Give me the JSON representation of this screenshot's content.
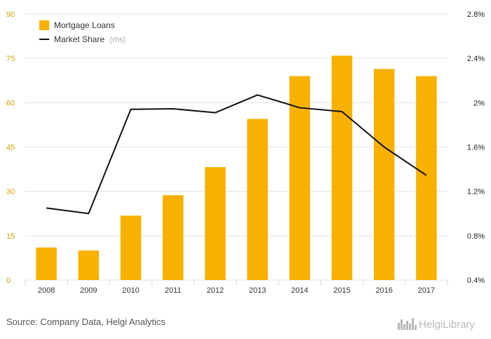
{
  "chart_data": {
    "type": "bar",
    "categories": [
      "2008",
      "2009",
      "2010",
      "2011",
      "2012",
      "2013",
      "2014",
      "2015",
      "2016",
      "2017"
    ],
    "series": [
      {
        "name": "Mortgage Loans",
        "type": "bar",
        "axis": "left",
        "values": [
          11.0,
          10.0,
          21.8,
          28.7,
          38.2,
          54.5,
          69.0,
          75.9,
          71.4,
          69.0
        ]
      },
      {
        "name": "Market Share",
        "name_suffix": "(rhs)",
        "type": "line",
        "axis": "right",
        "values": [
          1.05,
          1.0,
          1.94,
          1.945,
          1.91,
          2.07,
          1.955,
          1.92,
          1.6,
          1.345
        ]
      }
    ],
    "y_left": {
      "min": 0,
      "max": 90,
      "ticks": [
        0,
        15,
        30,
        45,
        60,
        75,
        90
      ],
      "tick_labels": [
        "0",
        "15",
        "30",
        "45",
        "60",
        "75",
        "90"
      ]
    },
    "y_right": {
      "min": 0.4,
      "max": 2.8,
      "ticks": [
        0.4,
        0.8,
        1.2,
        1.6,
        2.0,
        2.4,
        2.8
      ],
      "tick_labels": [
        "0.4%",
        "0.8%",
        "1.2%",
        "1.6%",
        "2%",
        "2.4%",
        "2.8%"
      ]
    },
    "grid": true,
    "legend_position": "top-left",
    "title": "",
    "xlabel": "",
    "ylabel": ""
  },
  "source": "Source: Company Data, Helgi Analytics",
  "logo": {
    "text": "HelgiLibrary",
    "icon": "city-skyline-icon"
  },
  "colors": {
    "bar": "#F8B100",
    "line": "#111111",
    "grid": "#e3e3e3",
    "left_tick": "#d6a100",
    "right_tick": "#222222",
    "logo": "#b9b9b9"
  }
}
